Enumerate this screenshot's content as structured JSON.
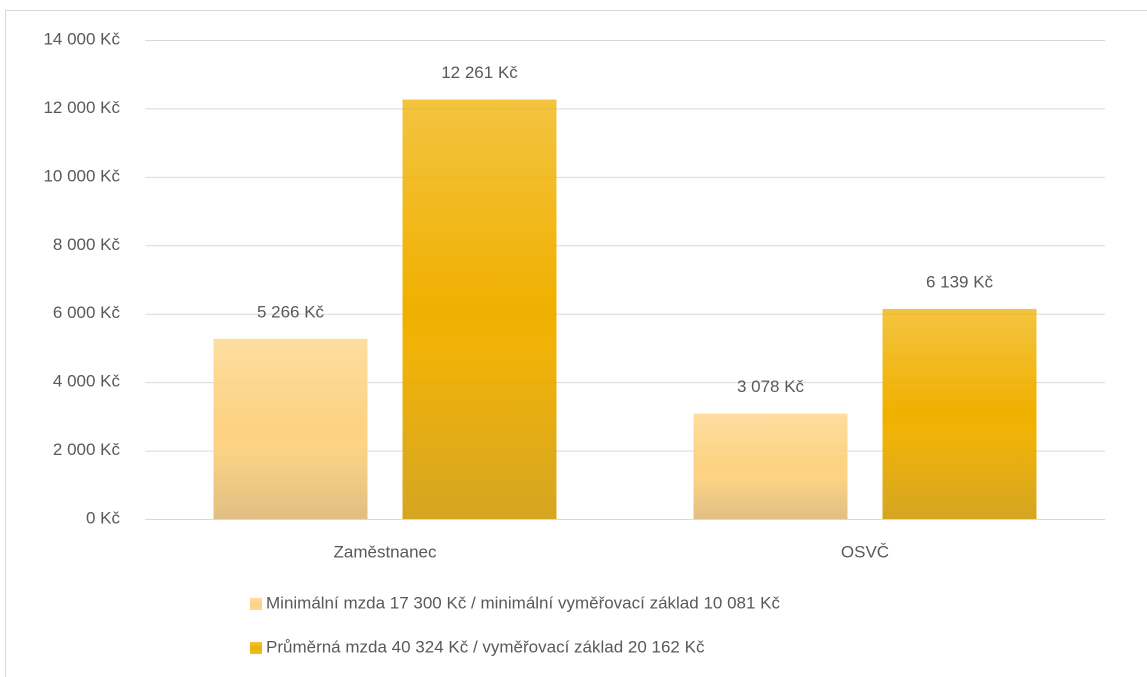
{
  "chart_data": {
    "type": "bar",
    "categories": [
      "Zaměstnanec",
      "OSVČ"
    ],
    "series": [
      {
        "name": "Minimální mzda 17 300 Kč / minimální vyměřovací základ 10 081 Kč",
        "color": "#fdd281",
        "values": [
          5266,
          3078
        ],
        "value_labels": [
          "5 266 Kč",
          "3 078 Kč"
        ]
      },
      {
        "name": "Průměrná mzda 40 324 Kč / vyměřovací základ 20 162 Kč",
        "color": "#f0b000",
        "values": [
          12261,
          6139
        ],
        "value_labels": [
          "12 261 Kč",
          "6 139 Kč"
        ]
      }
    ],
    "ylim": [
      0,
      14000
    ],
    "yticks": [
      {
        "value": 0,
        "label": "0 Kč"
      },
      {
        "value": 2000,
        "label": "2 000 Kč"
      },
      {
        "value": 4000,
        "label": "4 000 Kč"
      },
      {
        "value": 6000,
        "label": "6 000 Kč"
      },
      {
        "value": 8000,
        "label": "8 000 Kč"
      },
      {
        "value": 10000,
        "label": "10 000 Kč"
      },
      {
        "value": 12000,
        "label": "12 000 Kč"
      },
      {
        "value": 14000,
        "label": "14 000 Kč"
      }
    ],
    "grid": true,
    "legend": "bottom"
  }
}
